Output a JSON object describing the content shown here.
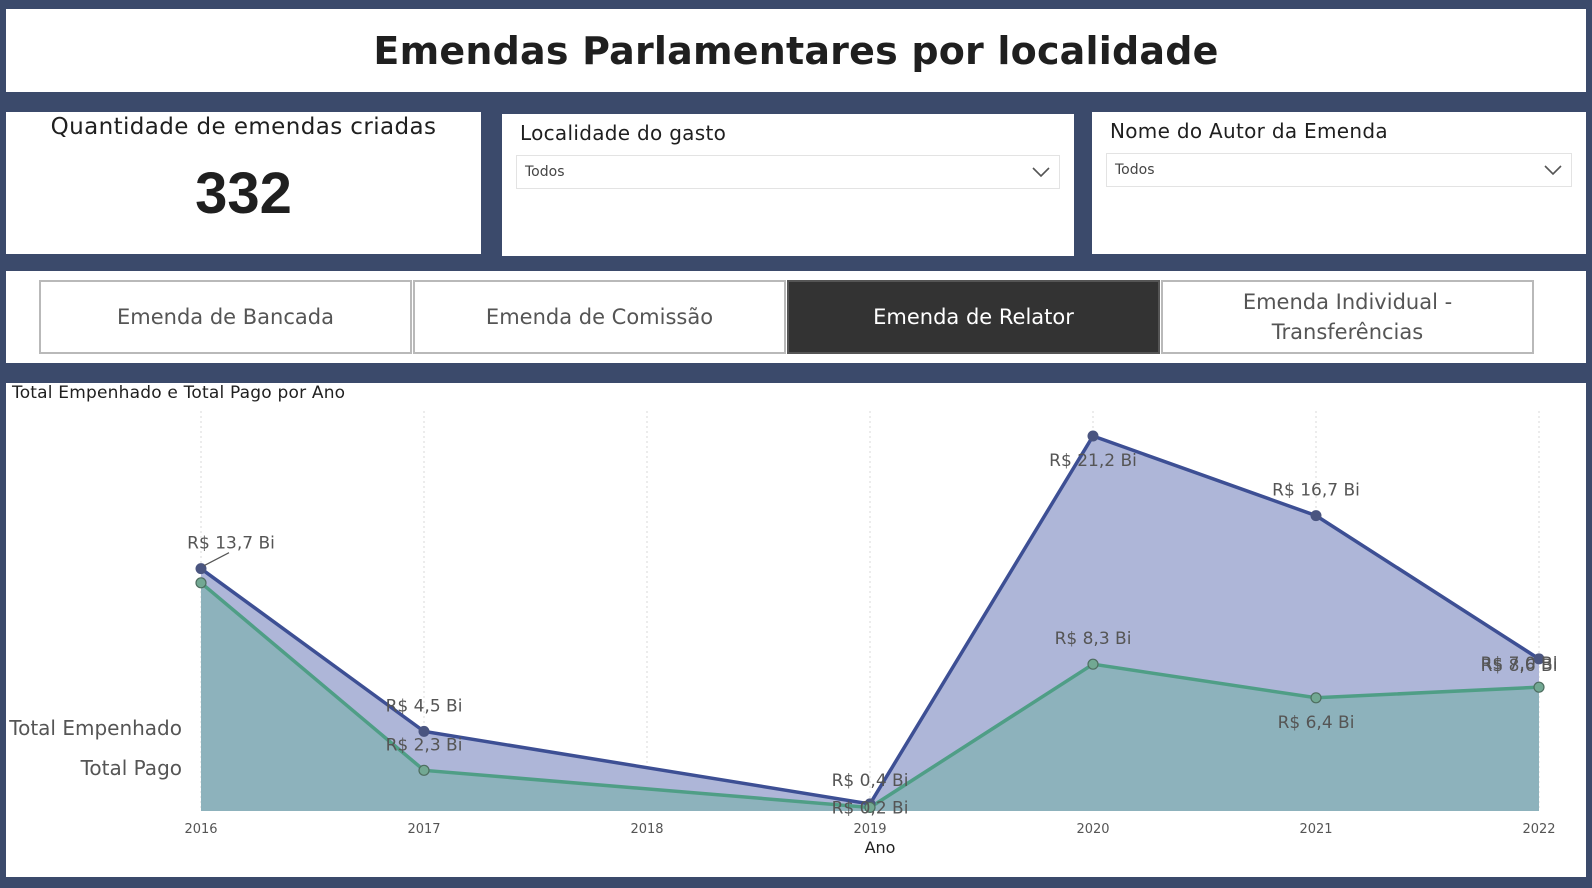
{
  "header": {
    "title": "Emendas Parlamentares por localidade"
  },
  "kpi": {
    "label": "Quantidade de emendas criadas",
    "value": "332"
  },
  "slicers": [
    {
      "title": "Localidade do gasto",
      "value": "Todos"
    },
    {
      "title": "Nome do Autor da Emenda",
      "value": "Todos"
    }
  ],
  "buttons": [
    {
      "label": "Emenda de Bancada",
      "active": false
    },
    {
      "label": "Emenda de Comissão",
      "active": false
    },
    {
      "label": "Emenda de Relator",
      "active": true
    },
    {
      "label": "Emenda Individual - Transferências",
      "active": false
    }
  ],
  "colors": {
    "empenhado_line": "#3d4f94",
    "empenhado_fill": "#aeb6d8",
    "pago_line": "#4f9e86",
    "pago_fill": "#8db2bc",
    "active_button": "#333333",
    "background": "#3b4a6b"
  },
  "chart_data": {
    "type": "area",
    "title": "Total Empenhado e Total Pago por Ano",
    "xlabel": "Ano",
    "ylabel": "",
    "x": [
      "2016",
      "2017",
      "2018",
      "2019",
      "2020",
      "2021",
      "2022"
    ],
    "legend": [
      "Total Empenhado",
      "Total Pago"
    ],
    "legend_position": "left",
    "grid": "vertical dotted",
    "ylim": [
      0,
      22.5
    ],
    "series": [
      {
        "name": "Total Empenhado",
        "x": [
          "2016",
          "2017",
          "2019",
          "2020",
          "2021",
          "2022"
        ],
        "values": [
          13.7,
          4.5,
          0.4,
          21.2,
          16.7,
          8.6
        ],
        "labels": [
          "R$ 13,7 Bi",
          "R$ 4,5 Bi",
          "R$ 0,4 Bi",
          "R$ 21,2 Bi",
          "R$ 16,7 Bi",
          "R$ 8,6 Bi"
        ]
      },
      {
        "name": "Total Pago",
        "x": [
          "2016",
          "2017",
          "2019",
          "2020",
          "2021",
          "2022"
        ],
        "values": [
          12.9,
          2.3,
          0.2,
          8.3,
          6.4,
          7.0
        ],
        "labels": [
          "",
          "R$ 2,3 Bi",
          "R$ 0,2 Bi",
          "R$ 8,3 Bi",
          "R$ 6,4 Bi",
          "R$ 7,0 Bi"
        ]
      }
    ]
  }
}
